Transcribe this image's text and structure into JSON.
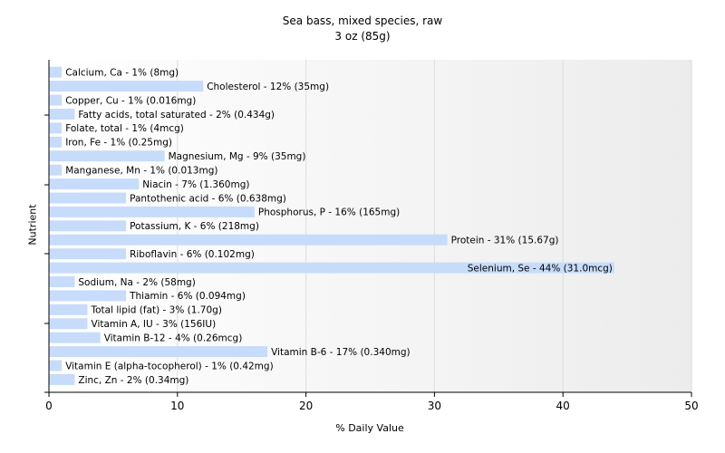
{
  "chart_data": {
    "type": "bar",
    "orientation": "horizontal",
    "title": "Sea bass, mixed species, raw",
    "subtitle": "3 oz (85g)",
    "xlabel": "% Daily Value",
    "ylabel": "Nutrient",
    "xlim": [
      0,
      50
    ],
    "xticks": [
      "0",
      "10",
      "20",
      "30",
      "40",
      "50"
    ],
    "grid": true,
    "bar_color": "#c7dcfb",
    "categories": [
      "Calcium, Ca",
      "Cholesterol",
      "Copper, Cu",
      "Fatty acids, total saturated",
      "Folate, total",
      "Iron, Fe",
      "Magnesium, Mg",
      "Manganese, Mn",
      "Niacin",
      "Pantothenic acid",
      "Phosphorus, P",
      "Potassium, K",
      "Protein",
      "Riboflavin",
      "Selenium, Se",
      "Sodium, Na",
      "Thiamin",
      "Total lipid (fat)",
      "Vitamin A, IU",
      "Vitamin B-12",
      "Vitamin B-6",
      "Vitamin E (alpha-tocopherol)",
      "Zinc, Zn"
    ],
    "values": [
      1,
      12,
      1,
      2,
      1,
      1,
      9,
      1,
      7,
      6,
      16,
      6,
      31,
      6,
      44,
      2,
      6,
      3,
      3,
      4,
      17,
      1,
      2
    ],
    "labels": [
      "Calcium, Ca - 1% (8mg)",
      "Cholesterol - 12% (35mg)",
      "Copper, Cu - 1% (0.016mg)",
      "Fatty acids, total saturated - 2% (0.434g)",
      "Folate, total - 1% (4mcg)",
      "Iron, Fe - 1% (0.25mg)",
      "Magnesium, Mg - 9% (35mg)",
      "Manganese, Mn - 1% (0.013mg)",
      "Niacin - 7% (1.360mg)",
      "Pantothenic acid - 6% (0.638mg)",
      "Phosphorus, P - 16% (165mg)",
      "Potassium, K - 6% (218mg)",
      "Protein - 31% (15.67g)",
      "Riboflavin - 6% (0.102mg)",
      "Selenium, Se - 44% (31.0mcg)",
      "Sodium, Na - 2% (58mg)",
      "Thiamin - 6% (0.094mg)",
      "Total lipid (fat) - 3% (1.70g)",
      "Vitamin A, IU - 3% (156IU)",
      "Vitamin B-12 - 4% (0.26mcg)",
      "Vitamin B-6 - 17% (0.340mg)",
      "Vitamin E (alpha-tocopherol) - 1% (0.42mg)",
      "Zinc, Zn - 2% (0.34mg)"
    ]
  }
}
